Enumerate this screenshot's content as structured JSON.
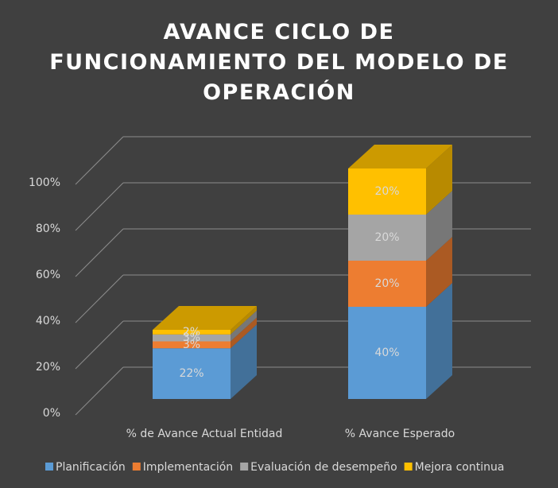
{
  "chart_data": {
    "type": "bar3d_stacked",
    "title": "AVANCE CICLO DE FUNCIONAMIENTO DEL MODELO DE OPERACIÓN",
    "categories": [
      "% de Avance Actual Entidad",
      "% Avance Esperado"
    ],
    "series": [
      {
        "name": "Planificación",
        "color": "#5b9bd5",
        "values": [
          22,
          40
        ],
        "value_labels": [
          "22%",
          "40%"
        ]
      },
      {
        "name": "Implementación",
        "color": "#ed7d31",
        "values": [
          3,
          20
        ],
        "value_labels": [
          "3%",
          "20%"
        ]
      },
      {
        "name": "Evaluación de desempeño",
        "color": "#a5a5a5",
        "values": [
          3,
          20
        ],
        "value_labels": [
          "3%",
          "20%"
        ]
      },
      {
        "name": "Mejora continua",
        "color": "#ffc000",
        "values": [
          2,
          20
        ],
        "value_labels": [
          "2%",
          "20%"
        ]
      }
    ],
    "ylim": [
      0,
      100
    ],
    "yticks": [
      {
        "value": 0,
        "label": "0%"
      },
      {
        "value": 20,
        "label": "20%"
      },
      {
        "value": 40,
        "label": "40%"
      },
      {
        "value": 60,
        "label": "60%"
      },
      {
        "value": 80,
        "label": "80%"
      },
      {
        "value": 100,
        "label": "100%"
      }
    ],
    "grid": true,
    "legend": "bottom"
  }
}
